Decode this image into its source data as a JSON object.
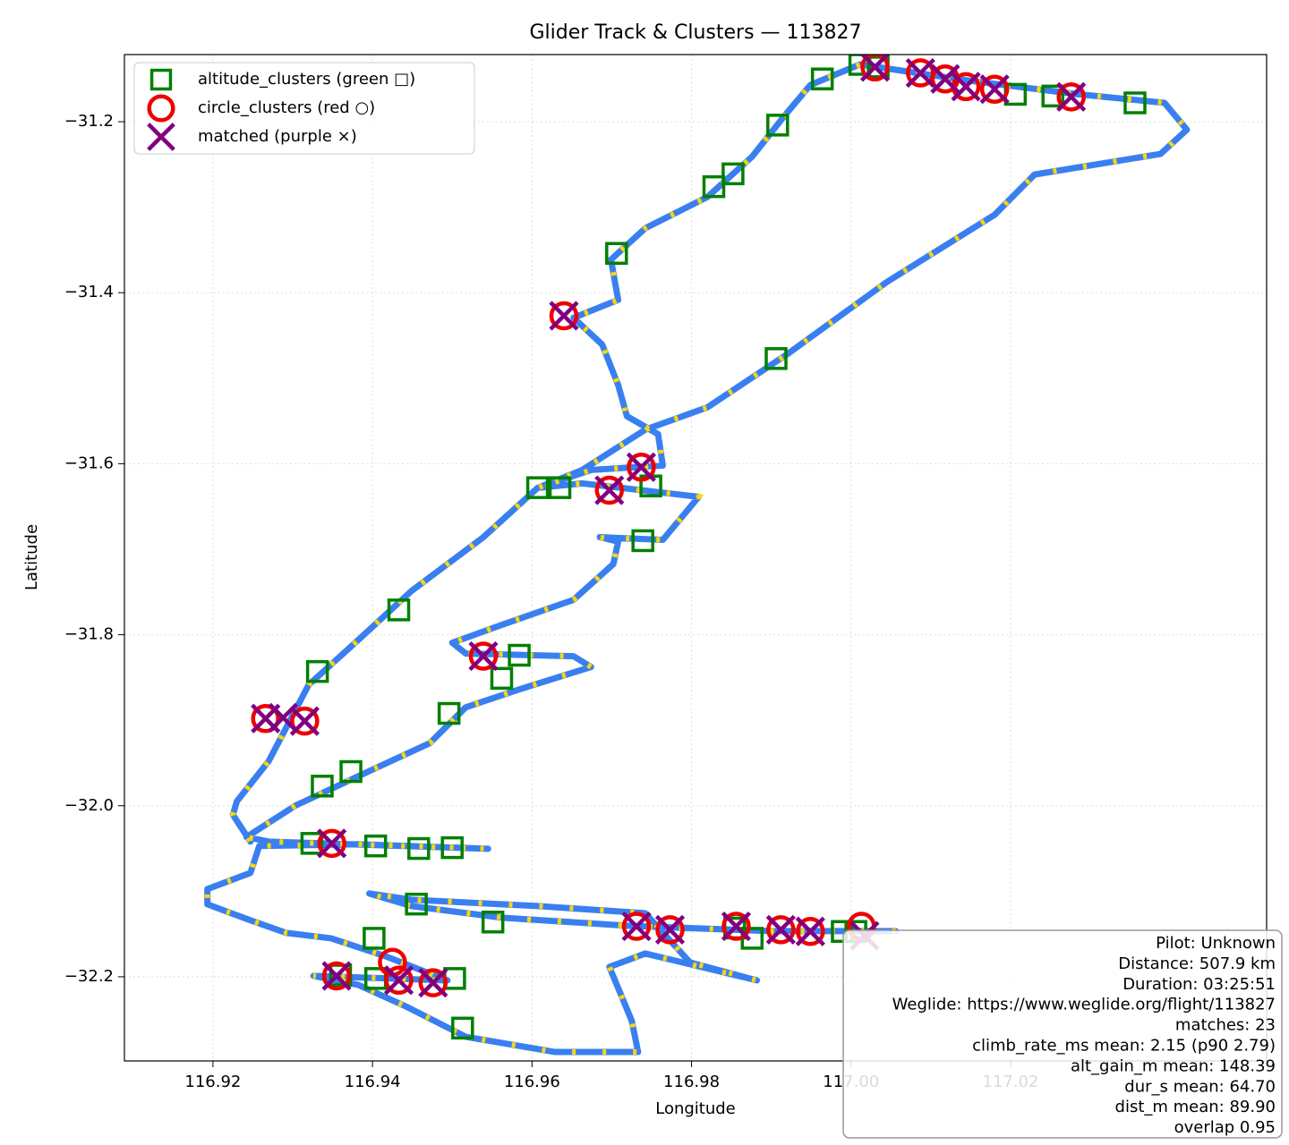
{
  "chart_data": {
    "type": "scatter",
    "title": "Glider Track & Clusters — 113827",
    "xlabel": "Longitude",
    "ylabel": "Latitude",
    "xlim": [
      116.9089,
      117.0521
    ],
    "ylim": [
      -32.2984,
      -31.1215
    ],
    "xticks": [
      116.92,
      116.94,
      116.96,
      116.98,
      {
        "value": 117.0,
        "label": "117.00"
      },
      117.02
    ],
    "yticks": [
      {
        "value": -31.2,
        "label": "−31.2"
      },
      {
        "value": -31.4,
        "label": "−31.4"
      },
      {
        "value": -31.6,
        "label": "−31.6"
      },
      {
        "value": -31.8,
        "label": "−31.8"
      },
      {
        "value": -32.0,
        "label": "−32.0"
      },
      {
        "value": -32.2,
        "label": "−32.2"
      }
    ],
    "grid": true,
    "legend": "upper left",
    "track": {
      "color": "#3a7ff0",
      "highlight_color": "#ffd700",
      "x": [
        117.0056,
        116.9899,
        116.9719,
        116.9562,
        116.9449,
        116.9396,
        116.9449,
        116.9607,
        116.9742,
        116.9798,
        116.9882,
        116.9742,
        116.9697,
        116.9725,
        116.9733,
        116.9629,
        116.9517,
        116.9444,
        116.9382,
        116.9326,
        116.9494,
        116.9416,
        116.9348,
        116.9292,
        116.9247,
        116.9193,
        116.9193,
        116.9247,
        116.9258,
        116.9382,
        116.9545,
        116.927,
        116.9242,
        116.9303,
        116.9404,
        116.9472,
        116.9517,
        116.9584,
        116.9674,
        116.9652,
        116.9517,
        116.95,
        116.9562,
        116.9652,
        116.9702,
        116.9708,
        116.9685,
        116.9764,
        116.9809,
        116.9663,
        116.9607,
        116.9674,
        116.9764,
        116.9758,
        116.9719,
        116.9708,
        116.9688,
        116.9652,
        116.9708,
        116.9699,
        116.9742,
        116.982,
        116.9876,
        116.9916,
        116.9949,
        117.0011,
        117.0146,
        117.0281,
        117.0393,
        117.0421,
        117.0388,
        117.023,
        117.018,
        117.0045,
        116.9921,
        116.982,
        116.9742,
        116.9663,
        116.9607,
        116.9539,
        116.9449,
        116.9382,
        116.932,
        116.927,
        116.923,
        116.9225,
        116.9247
      ],
      "y": [
        -32.1466,
        -32.1466,
        -32.1403,
        -32.1309,
        -32.1173,
        -32.1026,
        -32.1099,
        -32.1173,
        -32.1257,
        -32.1832,
        -32.2042,
        -32.1728,
        -32.1885,
        -32.2513,
        -32.288,
        -32.288,
        -32.2702,
        -32.2356,
        -32.2094,
        -32.199,
        -32.2042,
        -32.1759,
        -32.155,
        -32.1487,
        -32.134,
        -32.1152,
        -32.0974,
        -32.0785,
        -32.0471,
        -32.045,
        -32.0503,
        -32.0419,
        -32.0366,
        -32.0,
        -31.956,
        -31.9267,
        -31.8848,
        -31.8639,
        -31.8377,
        -31.8251,
        -31.822,
        -31.8094,
        -31.7885,
        -31.7592,
        -31.7173,
        -31.6911,
        -31.6859,
        -31.689,
        -31.6387,
        -31.623,
        -31.6283,
        -31.6073,
        -31.6021,
        -31.5654,
        -31.5445,
        -31.5079,
        -31.4607,
        -31.4293,
        -31.4084,
        -31.3613,
        -31.3246,
        -31.288,
        -31.2408,
        -31.1937,
        -31.1571,
        -31.133,
        -31.1518,
        -31.1675,
        -31.178,
        -31.2094,
        -31.2377,
        -31.2618,
        -31.3089,
        -31.3874,
        -31.4712,
        -31.534,
        -31.5602,
        -31.6073,
        -31.6283,
        -31.6859,
        -31.7487,
        -31.8063,
        -31.8586,
        -31.9476,
        -31.9948,
        -32.0105,
        -32.0419
      ]
    },
    "series": [
      {
        "name": "altitude_clusters (green □)",
        "color": "#008000",
        "marker": "square",
        "x": [
          116.9964,
          117.0011,
          117.0034,
          117.0206,
          117.0253,
          117.0356,
          116.9908,
          116.9852,
          116.9828,
          116.9706,
          116.9906,
          116.9749,
          116.9607,
          116.9635,
          116.9739,
          116.9433,
          116.9584,
          116.9562,
          116.9331,
          116.9496,
          116.9373,
          116.9337,
          116.9324,
          116.9404,
          116.9458,
          116.95,
          116.9455,
          116.9551,
          116.9402,
          116.936,
          116.9404,
          116.9503,
          116.9513,
          116.9854,
          116.9876,
          116.9989,
          117.0006
        ],
        "y": [
          -31.15,
          -31.133,
          -31.136,
          -31.168,
          -31.17,
          -31.178,
          -31.204,
          -31.261,
          -31.276,
          -31.354,
          -31.477,
          -31.626,
          -31.628,
          -31.628,
          -31.69,
          -31.771,
          -31.824,
          -31.851,
          -31.843,
          -31.892,
          -31.96,
          -31.977,
          -32.044,
          -32.047,
          -32.05,
          -32.049,
          -32.115,
          -32.136,
          -32.155,
          -32.198,
          -32.202,
          -32.202,
          -32.26,
          -32.143,
          -32.155,
          -32.147,
          -32.147
        ]
      },
      {
        "name": "circle_clusters (red ○)",
        "color": "#ee0000",
        "marker": "circle",
        "x": [
          117.003,
          117.0087,
          117.0118,
          117.0144,
          117.018,
          117.0276,
          116.964,
          116.9737,
          116.9697,
          116.9539,
          116.9266,
          116.9315,
          116.9349,
          116.9355,
          116.9425,
          116.9433,
          116.9476,
          116.9731,
          116.9773,
          116.9856,
          116.9912,
          116.9949,
          117.0013
        ],
        "y": [
          -31.136,
          -31.143,
          -31.15,
          -31.159,
          -31.162,
          -31.171,
          -31.427,
          -31.604,
          -31.631,
          -31.825,
          -31.898,
          -31.901,
          -32.044,
          -32.199,
          -32.183,
          -32.204,
          -32.207,
          -32.141,
          -32.145,
          -32.141,
          -32.145,
          -32.147,
          -32.141
        ]
      },
      {
        "name": "matched (purple ×)",
        "color": "#800080",
        "marker": "x",
        "x": [
          117.003,
          117.0087,
          117.0118,
          117.0144,
          117.018,
          117.0276,
          116.964,
          116.9737,
          116.9697,
          116.9539,
          116.9266,
          116.9288,
          116.9315,
          116.9349,
          116.9355,
          116.9433,
          116.9476,
          116.9731,
          116.9773,
          116.9856,
          116.9912,
          116.9949,
          117.0017
        ],
        "y": [
          -31.136,
          -31.143,
          -31.15,
          -31.159,
          -31.162,
          -31.171,
          -31.427,
          -31.604,
          -31.631,
          -31.825,
          -31.898,
          -31.897,
          -31.901,
          -32.044,
          -32.199,
          -32.204,
          -32.207,
          -32.141,
          -32.145,
          -32.141,
          -32.145,
          -32.147,
          -32.152
        ]
      }
    ],
    "annotation_lines": [
      "Pilot: Unknown",
      "Distance: 507.9 km",
      "Duration: 03:25:51",
      "Weglide: https://www.weglide.org/flight/113827",
      "matches: 23",
      "climb_rate_ms mean: 2.15 (p90 2.79)",
      "alt_gain_m mean: 148.39",
      "dur_s mean: 64.70",
      "dist_m mean: 89.90",
      "overlap 0.95"
    ]
  }
}
